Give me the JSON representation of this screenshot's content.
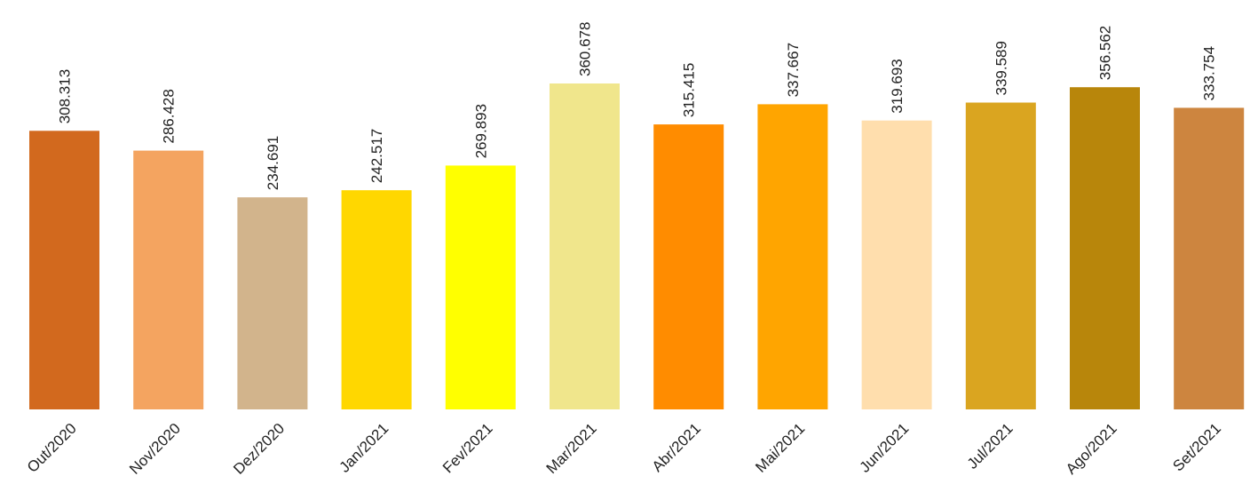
{
  "chart_data": {
    "type": "bar",
    "title": "",
    "xlabel": "",
    "ylabel": "",
    "categories": [
      "Out/2020",
      "Nov/2020",
      "Dez/2020",
      "Jan/2021",
      "Fev/2021",
      "Mar/2021",
      "Abr/2021",
      "Mai/2021",
      "Jun/2021",
      "Jul/2021",
      "Ago/2021",
      "Set/2021"
    ],
    "values": [
      308313,
      286428,
      234691,
      242517,
      269893,
      360678,
      315415,
      337667,
      319693,
      339589,
      356562,
      333754
    ],
    "value_labels": [
      "308.313",
      "286.428",
      "234.691",
      "242.517",
      "269.893",
      "360.678",
      "315.415",
      "337.667",
      "319.693",
      "339.589",
      "356.562",
      "333.754"
    ],
    "colors": [
      "#D2691E",
      "#F4A460",
      "#D2B48C",
      "#FFD700",
      "#FFFF00",
      "#F0E68C",
      "#FF8C00",
      "#FFA500",
      "#FFDEAD",
      "#DAA520",
      "#B8860B",
      "#CD853F"
    ],
    "ylim": [
      0,
      360678
    ],
    "grid": false,
    "legend": "none",
    "y_axis_visible": false
  }
}
